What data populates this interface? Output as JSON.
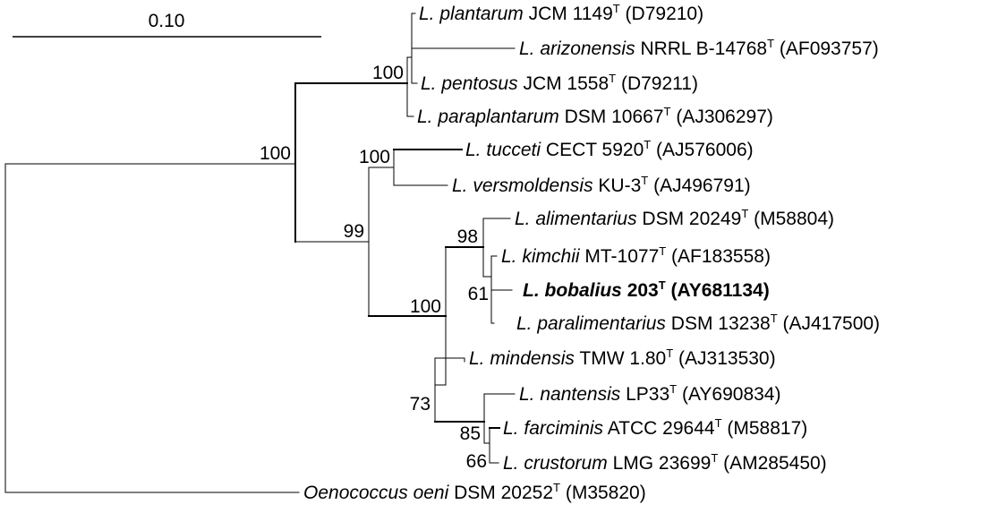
{
  "scale_bar": {
    "label": "0.10"
  },
  "type_strain_mark": "T",
  "taxa": [
    {
      "genus_abbr": "L.",
      "species": "plantarum",
      "strain": "JCM 1149",
      "accession": "(D79210)"
    },
    {
      "genus_abbr": "L.",
      "species": "arizonensis",
      "strain": "NRRL B-14768",
      "accession": "(AF093757)"
    },
    {
      "genus_abbr": "L.",
      "species": "pentosus",
      "strain": "JCM 1558",
      "accession": "(D79211)"
    },
    {
      "genus_abbr": "L.",
      "species": "paraplantarum",
      "strain": "DSM 10667",
      "accession": "(AJ306297)"
    },
    {
      "genus_abbr": "L.",
      "species": "tucceti",
      "strain": "CECT 5920",
      "accession": "(AJ576006)"
    },
    {
      "genus_abbr": "L.",
      "species": "versmoldensis",
      "strain": "KU-3",
      "accession": "(AJ496791)"
    },
    {
      "genus_abbr": "L.",
      "species": "alimentarius",
      "strain": "DSM 20249",
      "accession": "(M58804)"
    },
    {
      "genus_abbr": "L.",
      "species": "kimchii",
      "strain": "MT-1077",
      "accession": "(AF183558)"
    },
    {
      "genus_abbr": "L.",
      "species": "bobalius",
      "strain": "203",
      "accession": "(AY681134)",
      "highlight": true
    },
    {
      "genus_abbr": "L.",
      "species": "paralimentarius",
      "strain": "DSM 13238",
      "accession": "(AJ417500)"
    },
    {
      "genus_abbr": "L.",
      "species": "mindensis",
      "strain": "TMW 1.80",
      "accession": "(AJ313530)"
    },
    {
      "genus_abbr": "L.",
      "species": "nantensis",
      "strain": "LP33",
      "accession": "(AY690834)"
    },
    {
      "genus_abbr": "L.",
      "species": "farciminis",
      "strain": "ATCC 29644",
      "accession": "(M58817)"
    },
    {
      "genus_abbr": "L.",
      "species": "crustorum",
      "strain": "LMG 23699",
      "accession": "(AM285450)"
    },
    {
      "genus_abbr": "",
      "species": "Oenococcus oeni",
      "strain": "DSM 20252",
      "accession": "(M35820)"
    }
  ],
  "bootstrap_values": [
    "100",
    "100",
    "100",
    "99",
    "98",
    "100",
    "61",
    "73",
    "85",
    "66"
  ]
}
